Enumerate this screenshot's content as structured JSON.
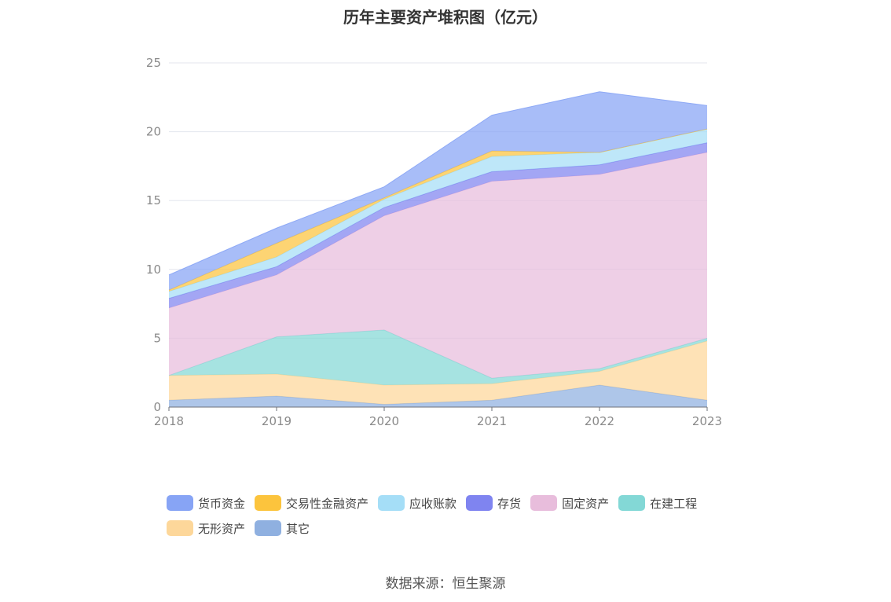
{
  "title": "历年主要资产堆积图（亿元）",
  "source": "数据来源：恒生聚源",
  "chart_data": {
    "type": "area",
    "stacked": true,
    "x": [
      "2018",
      "2019",
      "2020",
      "2021",
      "2022",
      "2023"
    ],
    "ylim": [
      0,
      25
    ],
    "yticks": [
      0,
      5,
      10,
      15,
      20,
      25
    ],
    "grid": true,
    "legend_position": "bottom",
    "series": [
      {
        "name": "其它",
        "color": "#8fb0e0",
        "values": [
          0.5,
          0.8,
          0.2,
          0.5,
          1.6,
          0.5
        ]
      },
      {
        "name": "无形资产",
        "color": "#fdd79a",
        "values": [
          1.8,
          1.6,
          1.4,
          1.2,
          1.0,
          4.3
        ]
      },
      {
        "name": "在建工程",
        "color": "#83d8d6",
        "values": [
          0.0,
          2.7,
          4.0,
          0.4,
          0.2,
          0.2
        ]
      },
      {
        "name": "固定资产",
        "color": "#e8bddc",
        "values": [
          4.9,
          4.5,
          8.3,
          14.3,
          14.1,
          13.5
        ]
      },
      {
        "name": "存货",
        "color": "#7f84f0",
        "values": [
          0.7,
          0.6,
          0.6,
          0.7,
          0.7,
          0.7
        ]
      },
      {
        "name": "应收账款",
        "color": "#a5def7",
        "values": [
          0.5,
          0.7,
          0.6,
          1.1,
          0.9,
          1.0
        ]
      },
      {
        "name": "交易性金融资产",
        "color": "#fcc43d",
        "values": [
          0.1,
          1.0,
          0.1,
          0.4,
          0.0,
          0.0
        ]
      },
      {
        "name": "货币资金",
        "color": "#87a4f5",
        "values": [
          1.1,
          1.1,
          0.8,
          2.6,
          4.4,
          1.7
        ]
      }
    ],
    "legend_order": [
      "货币资金",
      "交易性金融资产",
      "应收账款",
      "存货",
      "固定资产",
      "在建工程",
      "无形资产",
      "其它"
    ]
  }
}
